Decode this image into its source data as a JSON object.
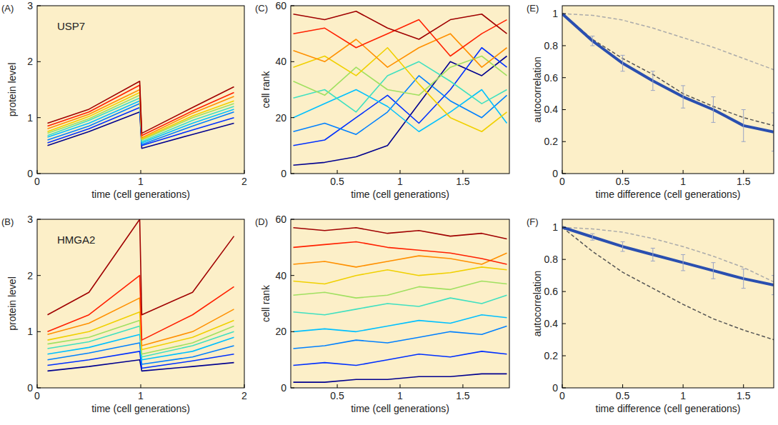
{
  "chart_data": [
    {
      "type": "line",
      "title": "(A)",
      "annotation": "USP7",
      "xlabel": "time (cell generations)",
      "ylabel": "protein level",
      "xlim": [
        0,
        2
      ],
      "xticks": [
        0,
        1,
        2
      ],
      "ylim": [
        0,
        3
      ],
      "yticks": [
        0,
        1,
        2,
        3
      ],
      "x": [
        0.1,
        0.5,
        0.99,
        1.01,
        1.5,
        1.9
      ],
      "series": [
        {
          "color": "#00008f",
          "values": [
            0.5,
            0.75,
            1.1,
            0.45,
            0.7,
            0.9
          ]
        },
        {
          "color": "#0030ff",
          "values": [
            0.55,
            0.8,
            1.18,
            0.5,
            0.78,
            1.0
          ]
        },
        {
          "color": "#0080ff",
          "values": [
            0.6,
            0.85,
            1.25,
            0.52,
            0.85,
            1.1
          ]
        },
        {
          "color": "#00c0ff",
          "values": [
            0.65,
            0.9,
            1.3,
            0.55,
            0.9,
            1.15
          ]
        },
        {
          "color": "#40e0c0",
          "values": [
            0.68,
            0.95,
            1.35,
            0.57,
            0.95,
            1.2
          ]
        },
        {
          "color": "#a0e060",
          "values": [
            0.72,
            0.98,
            1.4,
            0.6,
            1.0,
            1.25
          ]
        },
        {
          "color": "#f0d000",
          "values": [
            0.75,
            1.02,
            1.45,
            0.62,
            1.03,
            1.3
          ]
        },
        {
          "color": "#ff9000",
          "values": [
            0.8,
            1.06,
            1.5,
            0.64,
            1.08,
            1.38
          ]
        },
        {
          "color": "#ff2000",
          "values": [
            0.85,
            1.1,
            1.58,
            0.68,
            1.12,
            1.45
          ]
        },
        {
          "color": "#a00000",
          "values": [
            0.9,
            1.15,
            1.65,
            0.72,
            1.18,
            1.55
          ]
        }
      ]
    },
    {
      "type": "line",
      "title": "(B)",
      "annotation": "HMGA2",
      "xlabel": "time (cell generations)",
      "ylabel": "protein level",
      "xlim": [
        0,
        2
      ],
      "xticks": [
        0,
        1,
        2
      ],
      "ylim": [
        0,
        3
      ],
      "yticks": [
        0,
        1,
        2,
        3
      ],
      "x": [
        0.1,
        0.5,
        0.99,
        1.01,
        1.5,
        1.9
      ],
      "series": [
        {
          "color": "#00008f",
          "values": [
            0.3,
            0.38,
            0.5,
            0.3,
            0.38,
            0.45
          ]
        },
        {
          "color": "#0030ff",
          "values": [
            0.4,
            0.5,
            0.65,
            0.35,
            0.48,
            0.6
          ]
        },
        {
          "color": "#0080ff",
          "values": [
            0.5,
            0.62,
            0.8,
            0.42,
            0.55,
            0.75
          ]
        },
        {
          "color": "#00c0ff",
          "values": [
            0.6,
            0.72,
            0.95,
            0.5,
            0.65,
            0.9
          ]
        },
        {
          "color": "#40e0c0",
          "values": [
            0.7,
            0.82,
            1.1,
            0.55,
            0.75,
            1.0
          ]
        },
        {
          "color": "#a0e060",
          "values": [
            0.78,
            0.9,
            1.2,
            0.6,
            0.8,
            1.1
          ]
        },
        {
          "color": "#f0d000",
          "values": [
            0.85,
            1.0,
            1.35,
            0.68,
            0.9,
            1.2
          ]
        },
        {
          "color": "#ff9000",
          "values": [
            0.95,
            1.15,
            1.6,
            0.75,
            1.0,
            1.4
          ]
        },
        {
          "color": "#ff2000",
          "values": [
            1.0,
            1.3,
            2.0,
            0.85,
            1.3,
            1.8
          ]
        },
        {
          "color": "#a00000",
          "values": [
            1.3,
            1.7,
            3.0,
            1.3,
            1.7,
            2.7
          ]
        }
      ]
    },
    {
      "type": "line",
      "title": "(C)",
      "xlabel": "time (cell generations)",
      "ylabel": "cell rank",
      "xlim": [
        0.13,
        1.87
      ],
      "xticks": [
        0.5,
        1,
        1.5
      ],
      "ylim": [
        0,
        60
      ],
      "yticks": [
        0,
        20,
        40,
        60
      ],
      "x": [
        0.15,
        0.4,
        0.65,
        0.9,
        1.15,
        1.4,
        1.65,
        1.85
      ],
      "series": [
        {
          "color": "#00008f",
          "values": [
            3,
            4,
            6,
            10,
            25,
            40,
            35,
            42
          ]
        },
        {
          "color": "#0030ff",
          "values": [
            10,
            12,
            20,
            28,
            18,
            30,
            45,
            38
          ]
        },
        {
          "color": "#0080ff",
          "values": [
            15,
            18,
            14,
            22,
            35,
            26,
            20,
            28
          ]
        },
        {
          "color": "#00c0ff",
          "values": [
            20,
            25,
            30,
            24,
            15,
            22,
            30,
            18
          ]
        },
        {
          "color": "#40e0c0",
          "values": [
            27,
            30,
            22,
            35,
            40,
            33,
            25,
            30
          ]
        },
        {
          "color": "#a0e060",
          "values": [
            33,
            28,
            38,
            30,
            28,
            38,
            42,
            35
          ]
        },
        {
          "color": "#f0d000",
          "values": [
            38,
            42,
            35,
            45,
            32,
            20,
            15,
            22
          ]
        },
        {
          "color": "#ff9000",
          "values": [
            44,
            40,
            48,
            38,
            45,
            50,
            38,
            45
          ]
        },
        {
          "color": "#ff2000",
          "values": [
            50,
            52,
            45,
            50,
            55,
            42,
            50,
            55
          ]
        },
        {
          "color": "#a00000",
          "values": [
            57,
            55,
            58,
            52,
            48,
            55,
            57,
            50
          ]
        }
      ]
    },
    {
      "type": "line",
      "title": "(D)",
      "xlabel": "time (cell generations)",
      "ylabel": "cell rank",
      "xlim": [
        0.13,
        1.87
      ],
      "xticks": [
        0.5,
        1,
        1.5
      ],
      "ylim": [
        0,
        60
      ],
      "yticks": [
        0,
        20,
        40,
        60
      ],
      "x": [
        0.15,
        0.4,
        0.65,
        0.9,
        1.15,
        1.4,
        1.65,
        1.85
      ],
      "series": [
        {
          "color": "#00008f",
          "values": [
            2,
            2,
            3,
            3,
            4,
            4,
            5,
            5
          ]
        },
        {
          "color": "#0030ff",
          "values": [
            8,
            9,
            8,
            10,
            12,
            11,
            13,
            12
          ]
        },
        {
          "color": "#0080ff",
          "values": [
            14,
            15,
            17,
            16,
            18,
            20,
            19,
            22
          ]
        },
        {
          "color": "#00c0ff",
          "values": [
            20,
            21,
            20,
            22,
            24,
            23,
            26,
            25
          ]
        },
        {
          "color": "#40e0c0",
          "values": [
            27,
            26,
            28,
            30,
            29,
            32,
            30,
            33
          ]
        },
        {
          "color": "#a0e060",
          "values": [
            33,
            34,
            32,
            33,
            36,
            35,
            38,
            37
          ]
        },
        {
          "color": "#f0d000",
          "values": [
            38,
            37,
            40,
            42,
            40,
            41,
            43,
            42
          ]
        },
        {
          "color": "#ff9000",
          "values": [
            44,
            45,
            43,
            45,
            47,
            46,
            44,
            48
          ]
        },
        {
          "color": "#ff2000",
          "values": [
            50,
            51,
            52,
            50,
            49,
            48,
            46,
            44
          ]
        },
        {
          "color": "#a00000",
          "values": [
            57,
            56,
            57,
            55,
            56,
            54,
            55,
            53
          ]
        }
      ]
    },
    {
      "type": "line",
      "title": "(E)",
      "xlabel": "time difference (cell generations)",
      "ylabel": "autocorrelation",
      "xlim": [
        0,
        1.75
      ],
      "xticks": [
        0,
        0.5,
        1,
        1.5
      ],
      "ylim": [
        0,
        1.05
      ],
      "yticks": [
        0,
        0.2,
        0.4,
        0.6,
        0.8,
        1
      ],
      "x": [
        0,
        0.25,
        0.5,
        0.75,
        1,
        1.25,
        1.5,
        1.75
      ],
      "series": [
        {
          "color": "#aaaaaa",
          "line_style": "dashed",
          "values": [
            1,
            0.99,
            0.96,
            0.91,
            0.85,
            0.79,
            0.72,
            0.65
          ]
        },
        {
          "color": "#555555",
          "line_style": "dashed",
          "values": [
            1,
            0.84,
            0.72,
            0.62,
            0.5,
            0.42,
            0.35,
            0.3
          ]
        },
        {
          "color": "#2a4fb0",
          "line_style": "solid",
          "values": [
            1,
            0.83,
            0.69,
            0.58,
            0.48,
            0.4,
            0.3,
            0.26
          ],
          "errors": [
            0,
            0.03,
            0.05,
            0.06,
            0.07,
            0.08,
            0.1,
            0.12
          ]
        }
      ]
    },
    {
      "type": "line",
      "title": "(F)",
      "xlabel": "time difference (cell generations)",
      "ylabel": "autocorrelation",
      "xlim": [
        0,
        1.75
      ],
      "xticks": [
        0,
        0.5,
        1,
        1.5
      ],
      "ylim": [
        0,
        1.05
      ],
      "yticks": [
        0,
        0.2,
        0.4,
        0.6,
        0.8,
        1
      ],
      "x": [
        0,
        0.25,
        0.5,
        0.75,
        1,
        1.25,
        1.5,
        1.75
      ],
      "series": [
        {
          "color": "#aaaaaa",
          "line_style": "dashed",
          "values": [
            1,
            0.99,
            0.97,
            0.93,
            0.88,
            0.82,
            0.75,
            0.66
          ]
        },
        {
          "color": "#555555",
          "line_style": "dashed",
          "values": [
            1,
            0.85,
            0.72,
            0.62,
            0.52,
            0.43,
            0.36,
            0.3
          ]
        },
        {
          "color": "#2a4fb0",
          "line_style": "solid",
          "values": [
            1,
            0.94,
            0.88,
            0.83,
            0.78,
            0.73,
            0.68,
            0.64
          ],
          "errors": [
            0,
            0.02,
            0.03,
            0.04,
            0.05,
            0.05,
            0.06,
            0.06
          ]
        }
      ]
    }
  ]
}
